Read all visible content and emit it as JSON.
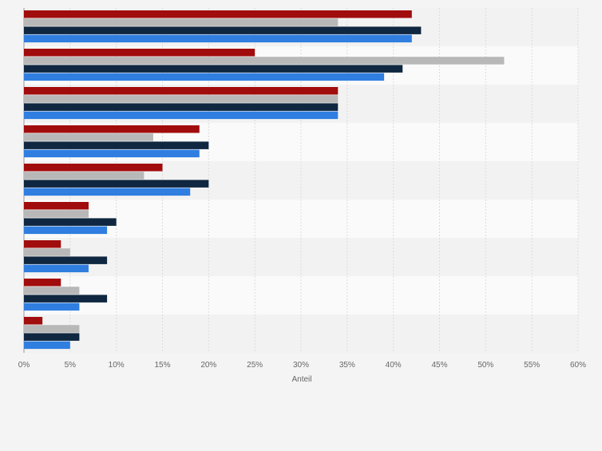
{
  "chart_data": {
    "type": "bar",
    "orientation": "horizontal",
    "categories": [
      "",
      "",
      "",
      "",
      "",
      "",
      "",
      "",
      ""
    ],
    "series": [
      {
        "color": "#a10c0c",
        "values": [
          42,
          25,
          34,
          19,
          15,
          7,
          4,
          4,
          2
        ]
      },
      {
        "color": "#b8b8b8",
        "values": [
          34,
          52,
          34,
          14,
          13,
          7,
          5,
          6,
          6
        ]
      },
      {
        "color": "#0f2740",
        "values": [
          43,
          41,
          34,
          20,
          20,
          10,
          9,
          9,
          6
        ]
      },
      {
        "color": "#2f7ee0",
        "values": [
          42,
          39,
          34,
          19,
          18,
          9,
          7,
          6,
          5
        ]
      }
    ],
    "xlabel": "Anteil",
    "xlim": [
      0,
      60
    ],
    "xticks": [
      "0%",
      "5%",
      "10%",
      "15%",
      "20%",
      "25%",
      "30%",
      "35%",
      "40%",
      "45%",
      "50%",
      "55%",
      "60%"
    ],
    "grid": true,
    "legend": "none"
  }
}
